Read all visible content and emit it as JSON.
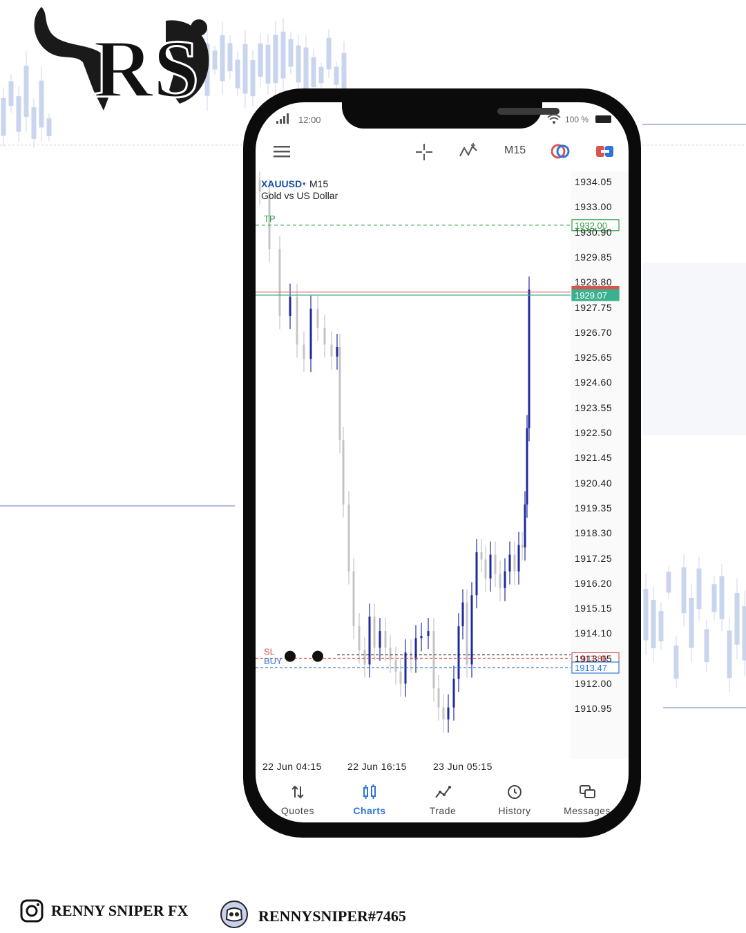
{
  "status_bar": {
    "time": "12:00",
    "battery": "100 %"
  },
  "toolbar": {
    "menu_icon": "hamburger-icon",
    "crosshair_icon": "crosshair-icon",
    "indicators_icon": "indicators-icon",
    "timeframe": "M15",
    "objects_icon": "circle-objects-icon",
    "trade_icon": "one-click-trade-icon"
  },
  "chart": {
    "symbol": "XAUUSD",
    "symbol_caret": "▾",
    "timeframe": "M15",
    "description": "Gold vs US Dollar",
    "price_axis": [
      "1934.05",
      "1933.00",
      "1930.90",
      "1929.85",
      "1928.80",
      "1927.75",
      "1926.70",
      "1925.65",
      "1924.60",
      "1923.55",
      "1922.50",
      "1921.45",
      "1920.40",
      "1919.35",
      "1918.30",
      "1917.25",
      "1916.20",
      "1915.15",
      "1914.10",
      "1913.05",
      "1912.00",
      "1910.95"
    ],
    "time_axis": [
      "22 Jun 04:15",
      "22 Jun 16:15",
      "23 Jun 05:15"
    ],
    "levels": {
      "tp": {
        "label": "TP",
        "price": "1932.00"
      },
      "ask": {
        "price": "1929.2"
      },
      "bid": {
        "price": "1929.07"
      },
      "sl": {
        "label": "SL",
        "price": "1913.86"
      },
      "buy": {
        "label": "BUY",
        "price": "1913.47"
      }
    },
    "colors": {
      "bull": "#1f2a9e",
      "bear": "#c4c4c4",
      "tp": "#2ea043",
      "sl": "#d9534f",
      "buy": "#2d74da",
      "bid": "#3bb08f",
      "ask": "#d9534f"
    }
  },
  "tabs": [
    {
      "label": "Quotes",
      "icon": "arrows-updown-icon",
      "active": false
    },
    {
      "label": "Charts",
      "icon": "candles-icon",
      "active": true
    },
    {
      "label": "Trade",
      "icon": "trade-line-icon",
      "active": false
    },
    {
      "label": "History",
      "icon": "history-clock-icon",
      "active": false
    },
    {
      "label": "Messages",
      "icon": "messages-icon",
      "active": false
    }
  ],
  "footer": {
    "instagram_icon": "instagram-icon",
    "instagram": "RENNY SNIPER FX",
    "discord_icon": "discord-icon",
    "discord": "RENNYSNIPER#7465"
  },
  "branding": {
    "logo_text": "RS",
    "logo": "bull-bear-logo"
  }
}
